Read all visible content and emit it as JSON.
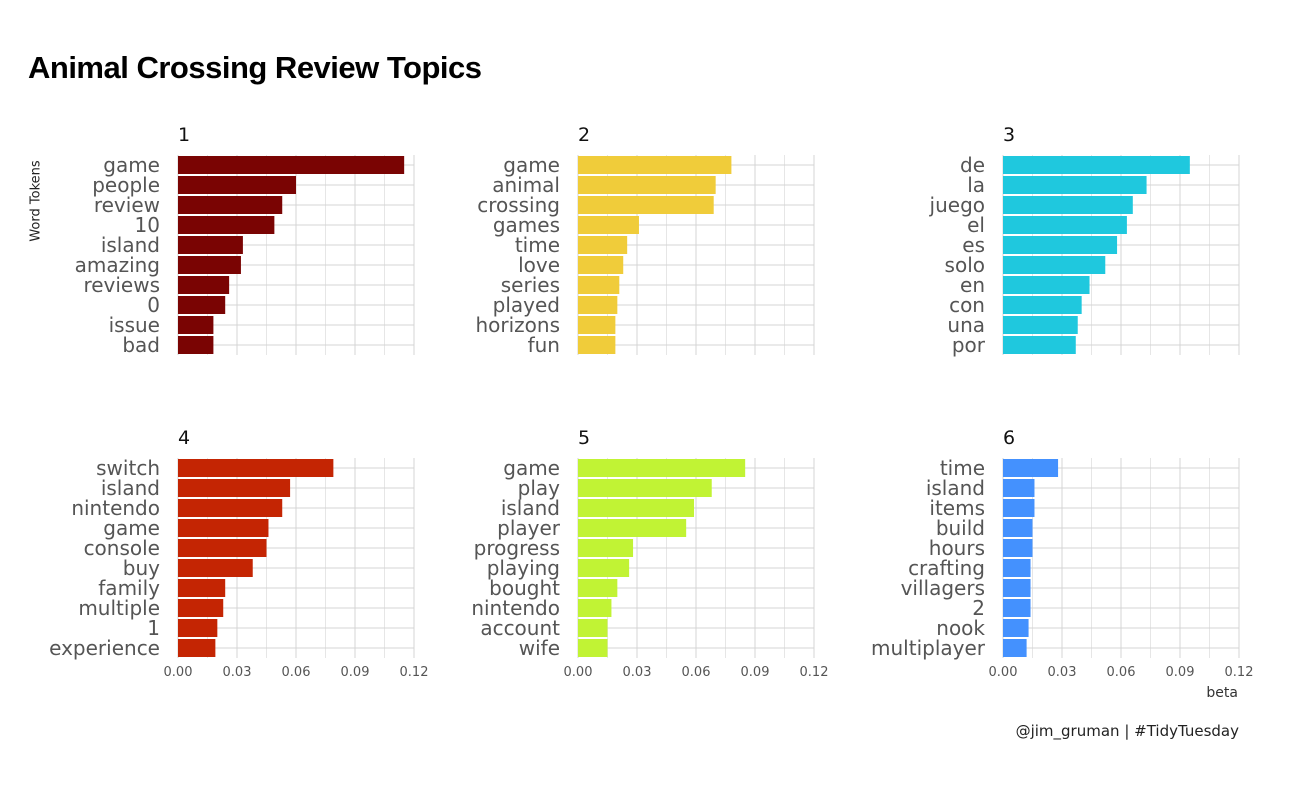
{
  "chart_data": {
    "type": "bar",
    "orientation": "horizontal",
    "title": "Animal Crossing Review Topics",
    "ylabel": "Word Tokens",
    "xlabel": "beta",
    "caption": "@jim_gruman | #TidyTuesday",
    "xlim": [
      0,
      0.12
    ],
    "xticks": [
      "0.00",
      "0.03",
      "0.06",
      "0.09",
      "0.12"
    ],
    "xtick_values": [
      0,
      0.03,
      0.06,
      0.09,
      0.12
    ],
    "grid": true,
    "panels": [
      {
        "title": "1",
        "color": "#7a0403",
        "categories": [
          "game",
          "people",
          "review",
          "10",
          "island",
          "amazing",
          "reviews",
          "0",
          "issue",
          "bad"
        ],
        "values": [
          0.115,
          0.06,
          0.053,
          0.049,
          0.033,
          0.032,
          0.026,
          0.024,
          0.018,
          0.018
        ]
      },
      {
        "title": "2",
        "color": "#f0cc3a",
        "categories": [
          "game",
          "animal",
          "crossing",
          "games",
          "time",
          "love",
          "series",
          "played",
          "horizons",
          "fun"
        ],
        "values": [
          0.078,
          0.07,
          0.069,
          0.031,
          0.025,
          0.023,
          0.021,
          0.02,
          0.019,
          0.019
        ]
      },
      {
        "title": "3",
        "color": "#1fc8de",
        "categories": [
          "de",
          "la",
          "juego",
          "el",
          "es",
          "solo",
          "en",
          "con",
          "una",
          "por"
        ],
        "values": [
          0.095,
          0.073,
          0.066,
          0.063,
          0.058,
          0.052,
          0.044,
          0.04,
          0.038,
          0.037
        ]
      },
      {
        "title": "4",
        "color": "#c42503",
        "categories": [
          "switch",
          "island",
          "nintendo",
          "game",
          "console",
          "buy",
          "family",
          "multiple",
          "1",
          "experience"
        ],
        "values": [
          0.079,
          0.057,
          0.053,
          0.046,
          0.045,
          0.038,
          0.024,
          0.023,
          0.02,
          0.019
        ]
      },
      {
        "title": "5",
        "color": "#c1f334",
        "categories": [
          "game",
          "play",
          "island",
          "player",
          "progress",
          "playing",
          "bought",
          "nintendo",
          "account",
          "wife"
        ],
        "values": [
          0.085,
          0.068,
          0.059,
          0.055,
          0.028,
          0.026,
          0.02,
          0.017,
          0.015,
          0.015
        ]
      },
      {
        "title": "6",
        "color": "#4491fe",
        "categories": [
          "time",
          "island",
          "items",
          "build",
          "hours",
          "crafting",
          "villagers",
          "2",
          "nook",
          "multiplayer"
        ],
        "values": [
          0.028,
          0.016,
          0.016,
          0.015,
          0.015,
          0.014,
          0.014,
          0.014,
          0.013,
          0.012
        ]
      }
    ]
  }
}
